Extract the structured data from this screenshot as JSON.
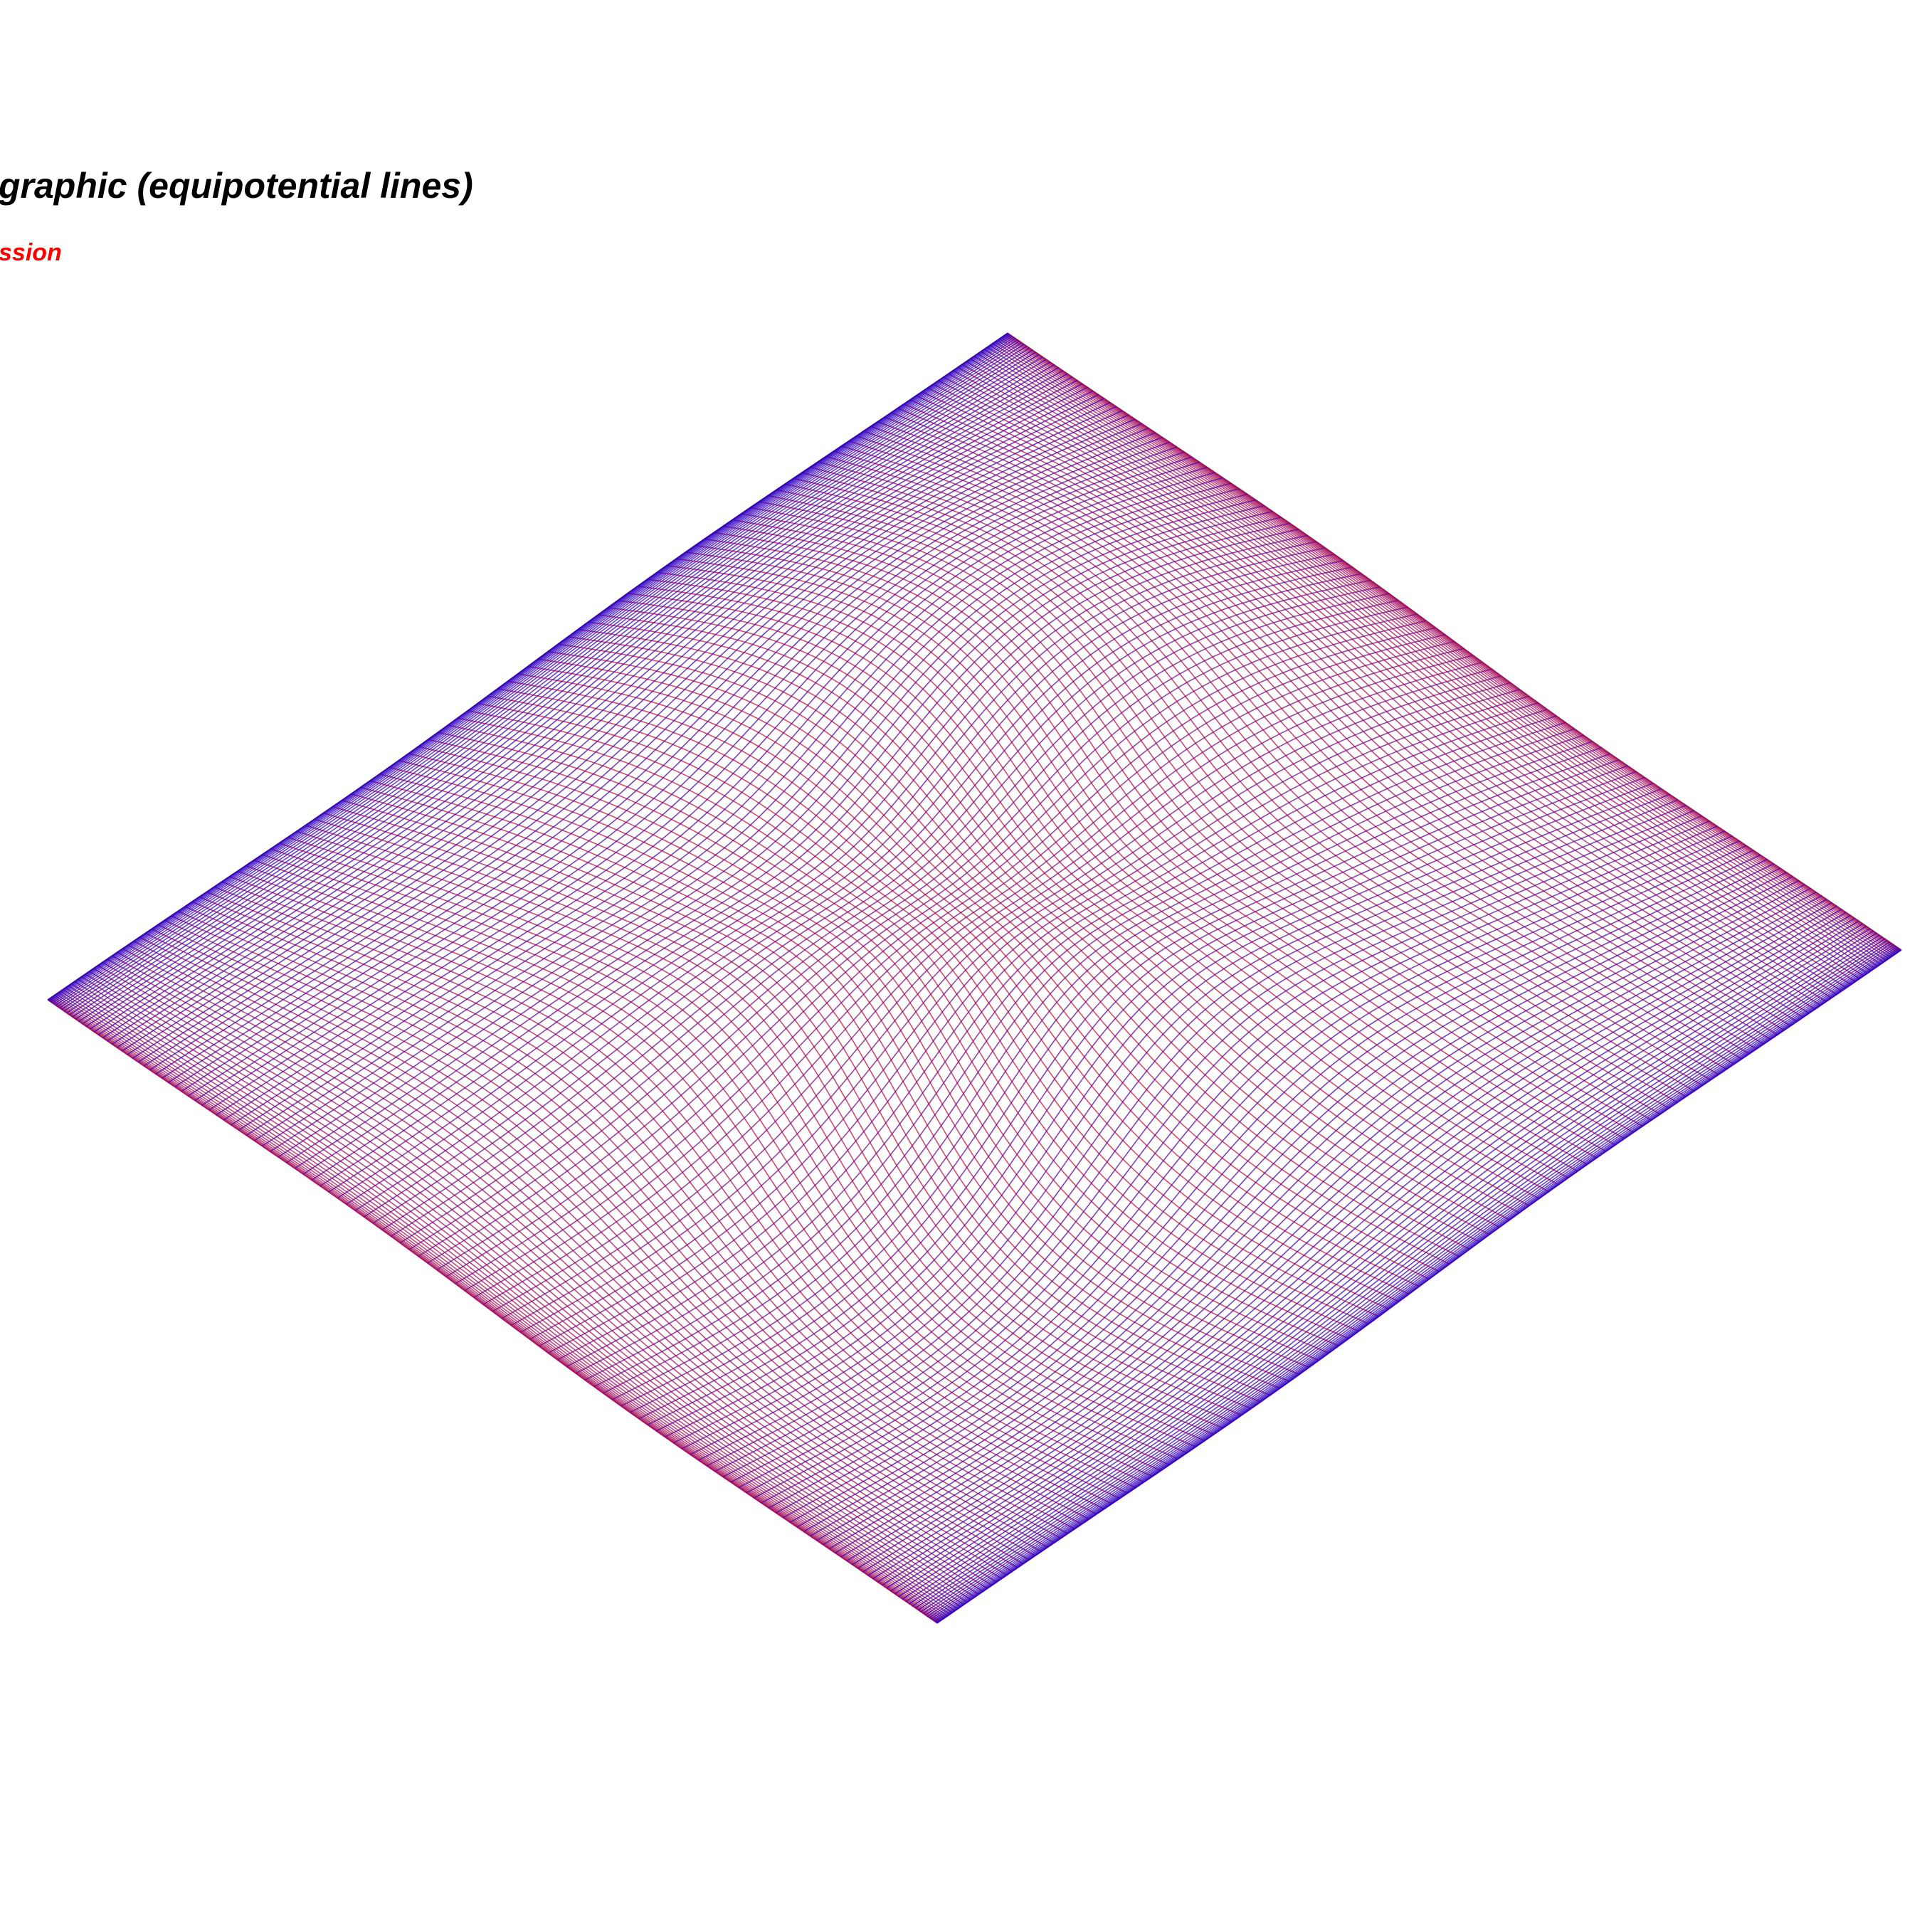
{
  "title": "graphic (equipotential lines)",
  "subtitle": "ssion"
}
